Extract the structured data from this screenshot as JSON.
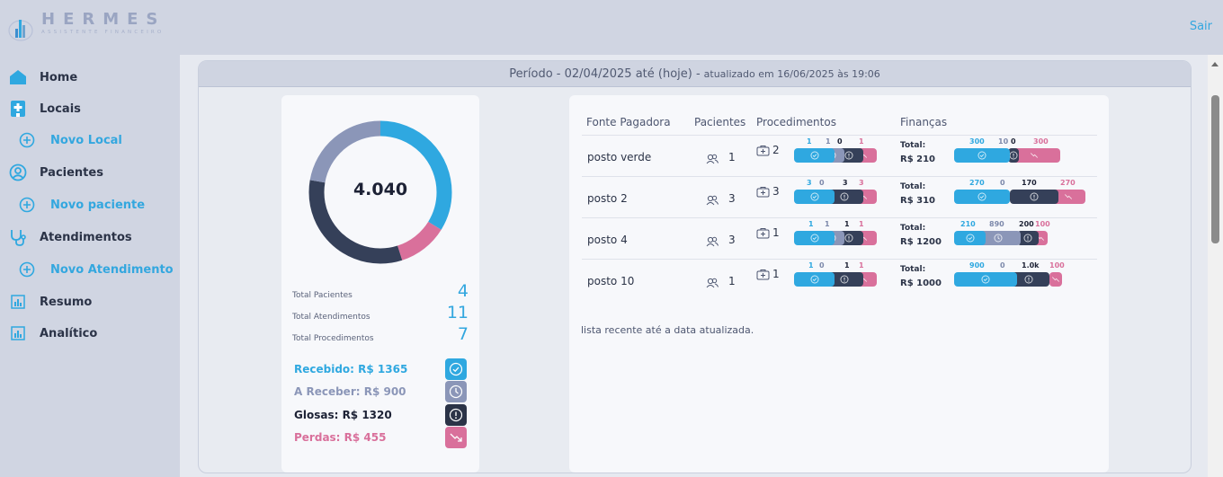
{
  "app": {
    "logo_title": "HERMES",
    "logo_subtitle": "ASSISTENTE FINANCEIRO",
    "logout_label": "Sair"
  },
  "sidebar": {
    "items": [
      {
        "label": "Home",
        "icon": "home-icon"
      },
      {
        "label": "Locais",
        "icon": "hospital-icon"
      },
      {
        "label": "Novo Local",
        "icon": "plus-circle-icon"
      },
      {
        "label": "Pacientes",
        "icon": "user-circle-icon"
      },
      {
        "label": "Novo paciente",
        "icon": "plus-circle-icon"
      },
      {
        "label": "Atendimentos",
        "icon": "stethoscope-icon"
      },
      {
        "label": "Novo Atendimento",
        "icon": "plus-circle-icon"
      },
      {
        "label": "Resumo",
        "icon": "chart-icon"
      },
      {
        "label": "Analítico",
        "icon": "chart-icon"
      }
    ]
  },
  "period": {
    "label": "Período - 02/04/2025 até (hoje) -",
    "updated": "atualizado em 16/06/2025 às 19:06"
  },
  "summary": {
    "total_display": "4.040",
    "donut": [
      {
        "name": "Recebido",
        "value": 1365,
        "color": "#2fa8e0"
      },
      {
        "name": "Perdas",
        "value": 455,
        "color": "#d9709b"
      },
      {
        "name": "Glosas",
        "value": 1320,
        "color": "#354059"
      },
      {
        "name": "A Receber",
        "value": 900,
        "color": "#8b96b8"
      }
    ],
    "stats": [
      {
        "label": "Total Pacientes",
        "value": "4"
      },
      {
        "label": "Total Atendimentos",
        "value": "11"
      },
      {
        "label": "Total Procedimentos",
        "value": "7"
      }
    ],
    "legend": [
      {
        "label": "Recebido: R$ 1365",
        "color": "#2fa8e0",
        "icon": "check-circle-icon"
      },
      {
        "label": "A Receber: R$ 900",
        "color": "#8b96b8",
        "icon": "clock-icon"
      },
      {
        "label": "Glosas: R$ 1320",
        "color": "#2b3347",
        "icon": "alert-circle-icon"
      },
      {
        "label": "Perdas: R$ 455",
        "color": "#d9709b",
        "icon": "trend-down-icon"
      }
    ]
  },
  "table": {
    "headers": [
      "Fonte Pagadora",
      "Pacientes",
      "Procedimentos",
      "Finanças"
    ],
    "fin_label": "Total:",
    "rows": [
      {
        "name": "posto verde",
        "pacientes": "1",
        "procedimentos": "2",
        "proc_counts": [
          1,
          1,
          0,
          1
        ],
        "fin_total": "R$ 210",
        "fin_values": [
          300,
          10,
          0,
          300
        ]
      },
      {
        "name": "posto 2",
        "pacientes": "3",
        "procedimentos": "3",
        "proc_counts": [
          3,
          0,
          3,
          3
        ],
        "fin_total": "R$ 310",
        "fin_values": [
          270,
          0,
          170,
          270
        ]
      },
      {
        "name": "posto 4",
        "pacientes": "3",
        "procedimentos": "1",
        "proc_counts": [
          1,
          1,
          1,
          1
        ],
        "fin_total": "R$ 1200",
        "fin_values": [
          210,
          890,
          200,
          100
        ]
      },
      {
        "name": "posto 10",
        "pacientes": "1",
        "procedimentos": "1",
        "proc_counts": [
          1,
          0,
          1,
          1
        ],
        "fin_total": "R$ 1000",
        "fin_values": [
          900,
          0,
          "1.0k",
          100
        ]
      }
    ],
    "footnote": "lista recente até a data atualizada."
  },
  "colors": {
    "recebido": "#2fa8e0",
    "a_receber": "#8b96b8",
    "glosas": "#354059",
    "perdas": "#d9709b",
    "accent": "#33a7df"
  }
}
